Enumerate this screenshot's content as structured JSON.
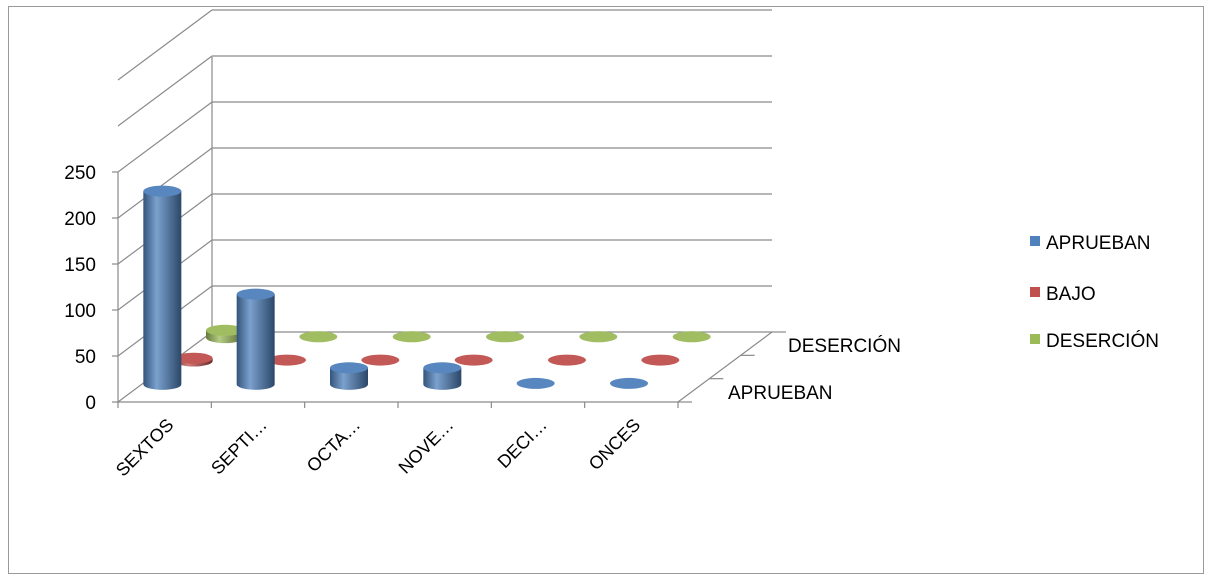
{
  "chart_data": {
    "type": "bar",
    "subtype": "3d-cylinder",
    "title": "",
    "xlabel": "",
    "ylabel": "",
    "ylim": [
      0,
      250
    ],
    "yticks": [
      0,
      50,
      100,
      150,
      200,
      250
    ],
    "categories": [
      "SEXTOS",
      "SEPTI…",
      "OCTA…",
      "NOVE…",
      "DECI…",
      "ONCES"
    ],
    "depth_labels": [
      "APRUEBAN",
      "DESERCIÓN"
    ],
    "series": [
      {
        "name": "APRUEBAN",
        "color": "#4F81BD",
        "values": [
          210,
          98,
          18,
          18,
          1,
          1
        ]
      },
      {
        "name": "BAJO",
        "color": "#C0504D",
        "values": [
          3,
          1,
          1,
          1,
          1,
          1
        ]
      },
      {
        "name": "DESERCIÓN",
        "color": "#9BBB59",
        "values": [
          8,
          1,
          1,
          1,
          1,
          1
        ]
      }
    ],
    "grid": true,
    "legend": "right"
  }
}
